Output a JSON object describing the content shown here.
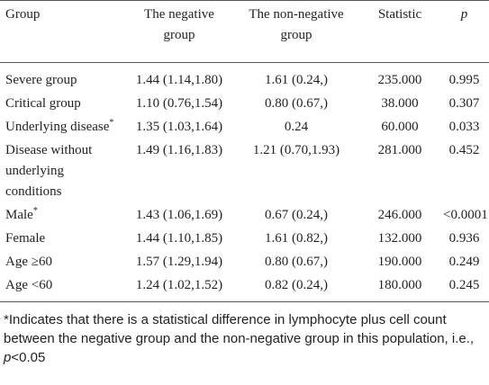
{
  "table": {
    "header": [
      "Group",
      "The negative group",
      "The non-negative group",
      "Statistic",
      "p"
    ],
    "rows": [
      [
        {
          "text": "Severe group"
        },
        "1.44 (1.14,1.80)",
        "1.61 (0.24,)",
        "235.000",
        "0.995"
      ],
      [
        {
          "text": "Critical group"
        },
        "1.10 (0.76,1.54)",
        "0.80 (0.67,)",
        "38.000",
        "0.307"
      ],
      [
        {
          "text": "Underlying disease",
          "sup": "*"
        },
        "1.35 (1.03,1.64)",
        "0.24",
        "60.000",
        "0.033"
      ],
      [
        {
          "text": "Disease without underlying conditions"
        },
        "1.49 (1.16,1.83)",
        "1.21 (0.70,1.93)",
        "281.000",
        "0.452"
      ],
      [
        {
          "text": "Male",
          "sup": "*"
        },
        "1.43 (1.06,1.69)",
        "0.67 (0.24,)",
        "246.000",
        "<0.0001"
      ],
      [
        {
          "text": "Female"
        },
        "1.44 (1.10,1.85)",
        "1.61 (0.82,)",
        "132.000",
        "0.936"
      ],
      [
        {
          "text": "Age ≥60"
        },
        "1.57 (1.29,1.94)",
        "0.80 (0.67,)",
        "190.000",
        "0.249"
      ],
      [
        {
          "text": "Age <60"
        },
        "1.24 (1.02,1.52)",
        "0.82 (0.24,)",
        "180.000",
        "0.245"
      ]
    ]
  },
  "footnote": [
    "*Indicates that there is a statistical difference in lymphocyte plus cell count between the negative group and the non-negative group in this population, i.e., ",
    "p",
    "<0.05"
  ]
}
